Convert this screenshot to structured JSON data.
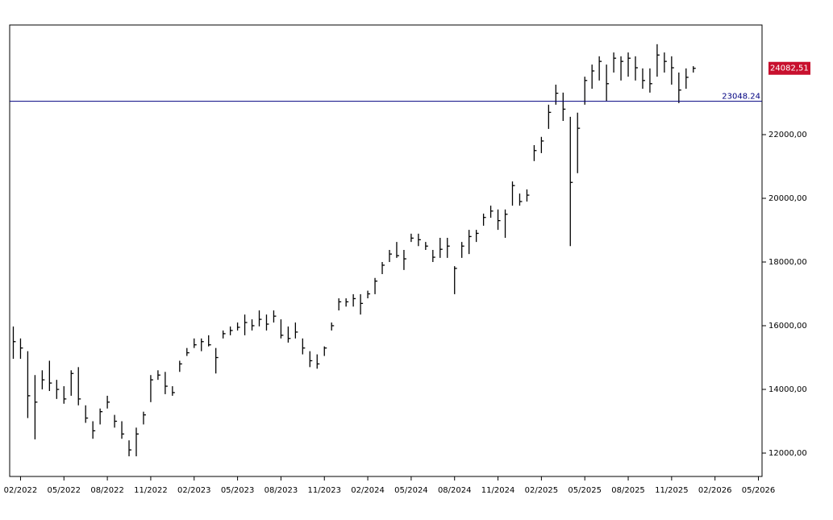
{
  "chart_data": {
    "type": "hlc",
    "categories": [
      null,
      "02/2022",
      null,
      null,
      null,
      null,
      null,
      "05/2022",
      null,
      null,
      null,
      null,
      null,
      "08/2022",
      null,
      null,
      null,
      null,
      null,
      "11/2022",
      null,
      null,
      null,
      null,
      null,
      "02/2023",
      null,
      null,
      null,
      null,
      null,
      "05/2023",
      null,
      null,
      null,
      null,
      null,
      "08/2023",
      null,
      null,
      null,
      null,
      null,
      "11/2023",
      null,
      null,
      null,
      null,
      null,
      "02/2024",
      null,
      null,
      null,
      null,
      null,
      "05/2024",
      null,
      null,
      null,
      null,
      null,
      "08/2024",
      null,
      null,
      null,
      null,
      null,
      "11/2024",
      null,
      null,
      null,
      null,
      null,
      "02/2025",
      null,
      null,
      null,
      null,
      null,
      "05/2025",
      null,
      null,
      null,
      null,
      null,
      "08/2025",
      null,
      null,
      null,
      null,
      null,
      "11/2025",
      null,
      null,
      null,
      null,
      null,
      "02/2026",
      null,
      null,
      null,
      null,
      null,
      "05/2026"
    ],
    "high": [
      15975,
      15600,
      15200,
      14450,
      14600,
      14900,
      14300,
      14100,
      14600,
      14700,
      13500,
      13000,
      13400,
      13800,
      13200,
      13000,
      12400,
      12800,
      13300,
      14450,
      14600,
      14550,
      14100,
      14900,
      15300,
      15600,
      15600,
      15700,
      15300,
      15850,
      15975,
      16100,
      16350,
      16200,
      16480,
      16350,
      16480,
      16200,
      15975,
      16100,
      15600,
      15200,
      15100,
      15350,
      16100,
      16860,
      16860,
      16990,
      16990,
      17100,
      17500,
      18000,
      18380,
      18630,
      18380,
      18890,
      18890,
      18630,
      18380,
      18760,
      18760,
      17870,
      18630,
      19010,
      19010,
      19520,
      19770,
      19650,
      19650,
      20530,
      20150,
      20280,
      21670,
      21930,
      22940,
      23570,
      23320,
      22560,
      22690,
      23820,
      24200,
      24460,
      24200,
      24580,
      24460,
      24580,
      24460,
      24080,
      24080,
      24840,
      24580,
      24460,
      23950,
      24080,
      24150,
      null,
      null,
      null,
      null,
      null,
      null,
      null,
      null,
      null
    ],
    "low": [
      14960,
      14960,
      13100,
      12430,
      14000,
      13950,
      13700,
      13550,
      13800,
      13500,
      12950,
      12450,
      12900,
      13400,
      12800,
      12450,
      11900,
      11900,
      12900,
      13600,
      14300,
      13850,
      13800,
      14550,
      15050,
      15300,
      15200,
      15350,
      14500,
      15600,
      15700,
      15850,
      15700,
      15850,
      15980,
      15850,
      16100,
      15600,
      15470,
      15600,
      15100,
      14700,
      14650,
      15050,
      15850,
      16480,
      16600,
      16600,
      16350,
      16860,
      16990,
      17620,
      18000,
      18130,
      17750,
      18630,
      18500,
      18380,
      18000,
      18130,
      18130,
      16990,
      18130,
      18250,
      18630,
      19140,
      19390,
      19010,
      18760,
      19770,
      19770,
      19900,
      21170,
      21420,
      22180,
      22940,
      22430,
      18500,
      20790,
      22940,
      23440,
      23700,
      23060,
      23950,
      23700,
      23820,
      23700,
      23440,
      23320,
      23820,
      23950,
      23570,
      22990,
      23440,
      23950,
      null,
      null,
      null,
      null,
      null,
      null,
      null,
      null,
      null
    ],
    "close": [
      15500,
      15300,
      13800,
      13600,
      14300,
      14200,
      14000,
      13700,
      14500,
      13700,
      13100,
      12700,
      13300,
      13600,
      13000,
      12600,
      12100,
      12600,
      13200,
      14300,
      14450,
      14100,
      13900,
      14800,
      15150,
      15400,
      15500,
      15400,
      15000,
      15750,
      15850,
      15950,
      16100,
      16000,
      16200,
      16050,
      16300,
      15700,
      15600,
      15800,
      15300,
      14900,
      14800,
      15300,
      16000,
      16750,
      16750,
      16850,
      16700,
      17000,
      17400,
      17900,
      18250,
      18200,
      18100,
      18750,
      18700,
      18500,
      18150,
      18400,
      18500,
      17800,
      18500,
      18800,
      18900,
      19400,
      19600,
      19300,
      19500,
      20400,
      19900,
      20100,
      21500,
      21800,
      22700,
      23300,
      22800,
      20500,
      22200,
      23700,
      24000,
      24300,
      23600,
      24400,
      24300,
      24400,
      24100,
      23700,
      23600,
      24500,
      24300,
      24100,
      23400,
      23800,
      24082.51,
      null,
      null,
      null,
      null,
      null,
      null,
      null,
      null,
      null
    ],
    "last_price": {
      "value": 24082.51,
      "label": "24082,51"
    },
    "hline": 23048.24,
    "color": "#000000",
    "hline_color": "#000080",
    "last_color": "#c8102e",
    "ylim": [
      11266,
      25443
    ],
    "yticks": [
      {
        "value": 12000,
        "label": "12000,00"
      },
      {
        "value": 14000,
        "label": "14000,00"
      },
      {
        "value": 16000,
        "label": "16000,00"
      },
      {
        "value": 18000,
        "label": "18000,00"
      },
      {
        "value": 20000,
        "label": "20000,00"
      },
      {
        "value": 22000,
        "label": "22000,00"
      }
    ]
  }
}
